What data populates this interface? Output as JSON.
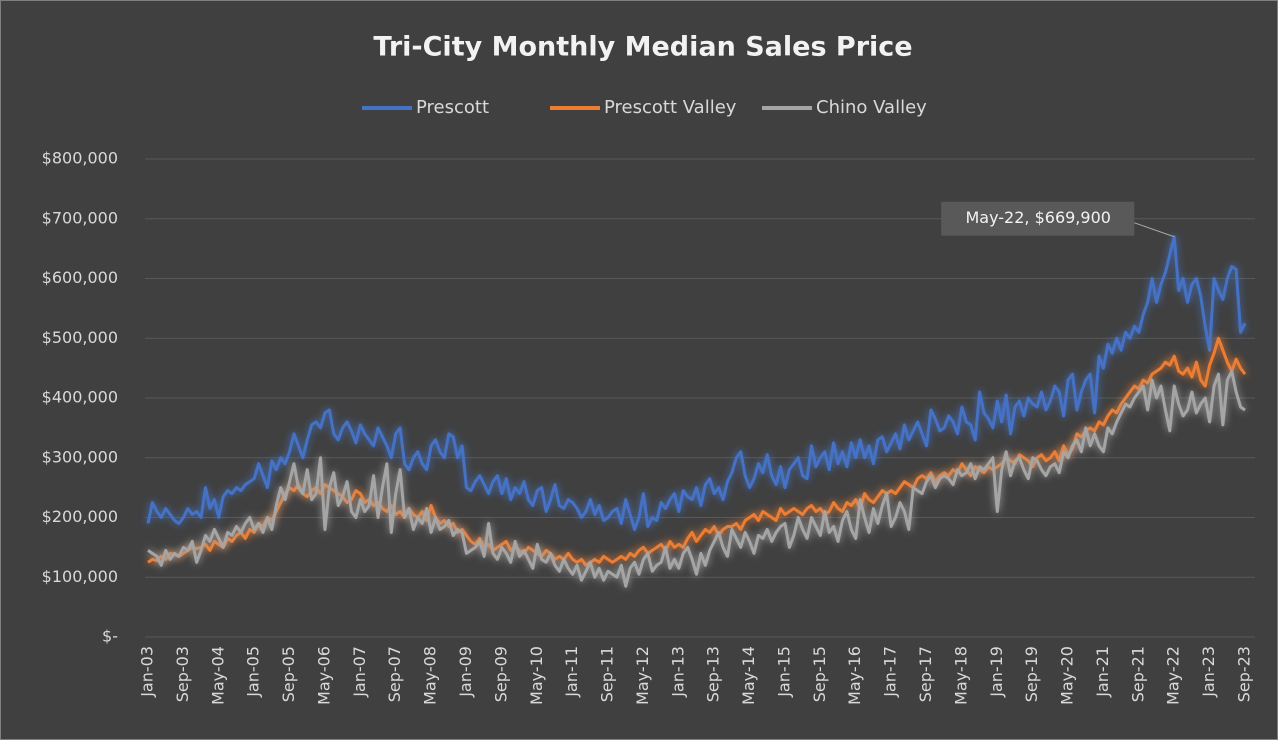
{
  "chart_data": {
    "type": "line",
    "title": "Tri-City Monthly Median Sales Price",
    "categories": [
      "Jan-03",
      null,
      null,
      null,
      null,
      null,
      null,
      null,
      "Sep-03",
      null,
      null,
      null,
      null,
      null,
      null,
      null,
      "May-04",
      null,
      null,
      null,
      null,
      null,
      null,
      null,
      "Jan-05",
      null,
      null,
      null,
      null,
      null,
      null,
      null,
      "Sep-05",
      null,
      null,
      null,
      null,
      null,
      null,
      null,
      "May-06",
      null,
      null,
      null,
      null,
      null,
      null,
      null,
      "Jan-07",
      null,
      null,
      null,
      null,
      null,
      null,
      null,
      "Sep-07",
      null,
      null,
      null,
      null,
      null,
      null,
      null,
      "May-08",
      null,
      null,
      null,
      null,
      null,
      null,
      null,
      "Jan-09",
      null,
      null,
      null,
      null,
      null,
      null,
      null,
      "Sep-09",
      null,
      null,
      null,
      null,
      null,
      null,
      null,
      "May-10",
      null,
      null,
      null,
      null,
      null,
      null,
      null,
      "Jan-11",
      null,
      null,
      null,
      null,
      null,
      null,
      null,
      "Sep-11",
      null,
      null,
      null,
      null,
      null,
      null,
      null,
      "May-12",
      null,
      null,
      null,
      null,
      null,
      null,
      null,
      "Jan-13",
      null,
      null,
      null,
      null,
      null,
      null,
      null,
      "Sep-13",
      null,
      null,
      null,
      null,
      null,
      null,
      null,
      "May-14",
      null,
      null,
      null,
      null,
      null,
      null,
      null,
      "Jan-15",
      null,
      null,
      null,
      null,
      null,
      null,
      null,
      "Sep-15",
      null,
      null,
      null,
      null,
      null,
      null,
      null,
      "May-16",
      null,
      null,
      null,
      null,
      null,
      null,
      null,
      "Jan-17",
      null,
      null,
      null,
      null,
      null,
      null,
      null,
      "Sep-17",
      null,
      null,
      null,
      null,
      null,
      null,
      null,
      "May-18",
      null,
      null,
      null,
      null,
      null,
      null,
      null,
      "Jan-19",
      null,
      null,
      null,
      null,
      null,
      null,
      null,
      "Sep-19",
      null,
      null,
      null,
      null,
      null,
      null,
      null,
      "May-20",
      null,
      null,
      null,
      null,
      null,
      null,
      null,
      "Jan-21",
      null,
      null,
      null,
      null,
      null,
      null,
      null,
      "Sep-21",
      null,
      null,
      null,
      null,
      null,
      null,
      null,
      "May-22",
      null,
      null,
      null,
      null,
      null,
      null,
      null,
      "Jan-23",
      null,
      null,
      null,
      null,
      null,
      null,
      null,
      "Sep-23"
    ],
    "series": [
      {
        "name": "Prescott",
        "color": "#4472c4",
        "values": [
          190000,
          225000,
          210000,
          200000,
          215000,
          205000,
          195000,
          190000,
          200000,
          215000,
          205000,
          210000,
          200000,
          250000,
          215000,
          230000,
          200000,
          235000,
          245000,
          240000,
          250000,
          245000,
          255000,
          260000,
          265000,
          290000,
          270000,
          250000,
          295000,
          280000,
          300000,
          290000,
          310000,
          340000,
          320000,
          300000,
          330000,
          355000,
          360000,
          350000,
          375000,
          380000,
          340000,
          330000,
          350000,
          360000,
          345000,
          325000,
          355000,
          340000,
          330000,
          320000,
          350000,
          335000,
          320000,
          300000,
          340000,
          350000,
          290000,
          280000,
          300000,
          310000,
          290000,
          280000,
          320000,
          330000,
          310000,
          300000,
          340000,
          335000,
          300000,
          320000,
          250000,
          245000,
          260000,
          270000,
          255000,
          240000,
          260000,
          270000,
          240000,
          265000,
          230000,
          250000,
          240000,
          260000,
          230000,
          220000,
          245000,
          250000,
          210000,
          230000,
          255000,
          220000,
          215000,
          230000,
          225000,
          215000,
          200000,
          210000,
          230000,
          205000,
          220000,
          195000,
          200000,
          210000,
          215000,
          190000,
          230000,
          205000,
          180000,
          200000,
          240000,
          185000,
          200000,
          195000,
          225000,
          215000,
          230000,
          240000,
          210000,
          245000,
          235000,
          230000,
          250000,
          220000,
          255000,
          265000,
          240000,
          250000,
          230000,
          260000,
          275000,
          300000,
          310000,
          270000,
          250000,
          265000,
          290000,
          275000,
          305000,
          270000,
          255000,
          285000,
          250000,
          280000,
          290000,
          300000,
          270000,
          265000,
          320000,
          285000,
          300000,
          310000,
          280000,
          325000,
          290000,
          310000,
          285000,
          325000,
          300000,
          330000,
          300000,
          320000,
          290000,
          330000,
          335000,
          310000,
          325000,
          340000,
          315000,
          355000,
          330000,
          345000,
          360000,
          340000,
          320000,
          380000,
          365000,
          345000,
          350000,
          370000,
          360000,
          340000,
          385000,
          360000,
          355000,
          330000,
          410000,
          375000,
          365000,
          350000,
          395000,
          360000,
          405000,
          340000,
          385000,
          395000,
          370000,
          400000,
          390000,
          385000,
          410000,
          380000,
          395000,
          420000,
          410000,
          370000,
          430000,
          440000,
          380000,
          410000,
          430000,
          440000,
          375000,
          470000,
          450000,
          490000,
          475000,
          500000,
          480000,
          510000,
          500000,
          520000,
          510000,
          540000,
          560000,
          600000,
          560000,
          590000,
          610000,
          640000,
          669900,
          580000,
          600000,
          560000,
          590000,
          600000,
          570000,
          520000,
          480000,
          600000,
          580000,
          565000,
          600000,
          620000,
          615000,
          510000,
          525000
        ]
      },
      {
        "name": "Prescott Valley",
        "color": "#ed7d31",
        "values": [
          125000,
          130000,
          128000,
          135000,
          130000,
          140000,
          138000,
          135000,
          140000,
          145000,
          150000,
          148000,
          150000,
          155000,
          145000,
          160000,
          155000,
          150000,
          165000,
          160000,
          170000,
          175000,
          165000,
          180000,
          175000,
          190000,
          185000,
          200000,
          195000,
          210000,
          225000,
          240000,
          250000,
          245000,
          255000,
          240000,
          235000,
          245000,
          250000,
          240000,
          255000,
          250000,
          245000,
          240000,
          235000,
          225000,
          230000,
          245000,
          240000,
          225000,
          230000,
          220000,
          225000,
          215000,
          210000,
          220000,
          205000,
          210000,
          200000,
          215000,
          205000,
          200000,
          210000,
          195000,
          220000,
          200000,
          190000,
          195000,
          185000,
          190000,
          175000,
          180000,
          170000,
          160000,
          155000,
          165000,
          150000,
          155000,
          145000,
          150000,
          155000,
          160000,
          145000,
          150000,
          145000,
          140000,
          150000,
          145000,
          140000,
          135000,
          145000,
          140000,
          130000,
          135000,
          130000,
          140000,
          130000,
          125000,
          130000,
          120000,
          125000,
          130000,
          125000,
          135000,
          130000,
          125000,
          130000,
          135000,
          130000,
          140000,
          135000,
          145000,
          150000,
          140000,
          145000,
          150000,
          155000,
          145000,
          160000,
          150000,
          155000,
          150000,
          165000,
          175000,
          160000,
          170000,
          180000,
          175000,
          185000,
          170000,
          180000,
          185000,
          185000,
          190000,
          180000,
          195000,
          200000,
          205000,
          195000,
          210000,
          205000,
          200000,
          195000,
          215000,
          205000,
          210000,
          215000,
          210000,
          205000,
          215000,
          220000,
          210000,
          215000,
          205000,
          210000,
          225000,
          215000,
          210000,
          225000,
          220000,
          230000,
          215000,
          240000,
          230000,
          225000,
          235000,
          245000,
          240000,
          245000,
          240000,
          250000,
          260000,
          255000,
          250000,
          265000,
          270000,
          265000,
          275000,
          260000,
          270000,
          275000,
          270000,
          280000,
          275000,
          290000,
          280000,
          270000,
          285000,
          280000,
          275000,
          285000,
          280000,
          285000,
          290000,
          300000,
          295000,
          290000,
          305000,
          300000,
          295000,
          285000,
          300000,
          305000,
          295000,
          300000,
          310000,
          295000,
          320000,
          305000,
          315000,
          340000,
          335000,
          345000,
          350000,
          345000,
          360000,
          355000,
          370000,
          380000,
          375000,
          390000,
          400000,
          410000,
          420000,
          415000,
          430000,
          425000,
          440000,
          445000,
          450000,
          460000,
          455000,
          470000,
          445000,
          440000,
          450000,
          435000,
          460000,
          430000,
          420000,
          455000,
          475000,
          500000,
          480000,
          460000,
          445000,
          465000,
          450000,
          440000
        ]
      },
      {
        "name": "Chino Valley",
        "color": "#a5a5a5",
        "values": [
          145000,
          140000,
          135000,
          120000,
          145000,
          130000,
          140000,
          135000,
          150000,
          145000,
          160000,
          125000,
          145000,
          170000,
          160000,
          180000,
          165000,
          150000,
          175000,
          170000,
          185000,
          175000,
          190000,
          200000,
          180000,
          190000,
          175000,
          200000,
          180000,
          220000,
          250000,
          230000,
          260000,
          290000,
          250000,
          240000,
          280000,
          230000,
          240000,
          300000,
          180000,
          250000,
          275000,
          220000,
          235000,
          260000,
          210000,
          200000,
          230000,
          210000,
          220000,
          270000,
          200000,
          250000,
          290000,
          175000,
          240000,
          280000,
          200000,
          215000,
          180000,
          200000,
          190000,
          215000,
          175000,
          200000,
          180000,
          185000,
          195000,
          170000,
          180000,
          175000,
          140000,
          145000,
          150000,
          160000,
          135000,
          190000,
          140000,
          130000,
          150000,
          140000,
          125000,
          160000,
          135000,
          145000,
          130000,
          115000,
          155000,
          130000,
          125000,
          140000,
          120000,
          110000,
          130000,
          115000,
          105000,
          120000,
          95000,
          110000,
          125000,
          100000,
          115000,
          95000,
          110000,
          105000,
          100000,
          120000,
          85000,
          115000,
          125000,
          105000,
          130000,
          140000,
          110000,
          120000,
          125000,
          150000,
          115000,
          130000,
          115000,
          140000,
          150000,
          130000,
          105000,
          140000,
          120000,
          145000,
          160000,
          175000,
          150000,
          135000,
          180000,
          165000,
          150000,
          175000,
          160000,
          140000,
          170000,
          165000,
          180000,
          160000,
          175000,
          185000,
          190000,
          150000,
          170000,
          200000,
          180000,
          165000,
          200000,
          185000,
          170000,
          210000,
          175000,
          185000,
          160000,
          195000,
          210000,
          180000,
          165000,
          230000,
          200000,
          175000,
          215000,
          190000,
          220000,
          240000,
          185000,
          200000,
          225000,
          210000,
          180000,
          250000,
          245000,
          240000,
          260000,
          270000,
          250000,
          265000,
          270000,
          265000,
          255000,
          280000,
          270000,
          275000,
          290000,
          265000,
          285000,
          280000,
          290000,
          300000,
          210000,
          280000,
          310000,
          270000,
          295000,
          300000,
          280000,
          265000,
          300000,
          295000,
          280000,
          270000,
          285000,
          290000,
          275000,
          310000,
          300000,
          320000,
          330000,
          310000,
          350000,
          320000,
          340000,
          320000,
          310000,
          350000,
          340000,
          360000,
          375000,
          390000,
          385000,
          400000,
          410000,
          420000,
          380000,
          430000,
          400000,
          420000,
          380000,
          345000,
          420000,
          390000,
          370000,
          380000,
          410000,
          375000,
          390000,
          400000,
          360000,
          420000,
          440000,
          355000,
          430000,
          445000,
          410000,
          385000,
          380000
        ]
      }
    ],
    "ylim": [
      0,
      800000
    ],
    "yticks": [
      {
        "value": 0,
        "label": "$-"
      },
      {
        "value": 100000,
        "label": "$100,000"
      },
      {
        "value": 200000,
        "label": "$200,000"
      },
      {
        "value": 300000,
        "label": "$300,000"
      },
      {
        "value": 400000,
        "label": "$400,000"
      },
      {
        "value": 500000,
        "label": "$500,000"
      },
      {
        "value": 600000,
        "label": "$600,000"
      },
      {
        "value": 700000,
        "label": "$700,000"
      },
      {
        "value": 800000,
        "label": "$800,000"
      }
    ],
    "grid": true,
    "legend": "top",
    "annotation": {
      "x": "May-22",
      "y": 669900,
      "label": "May-22, $669,900"
    }
  }
}
